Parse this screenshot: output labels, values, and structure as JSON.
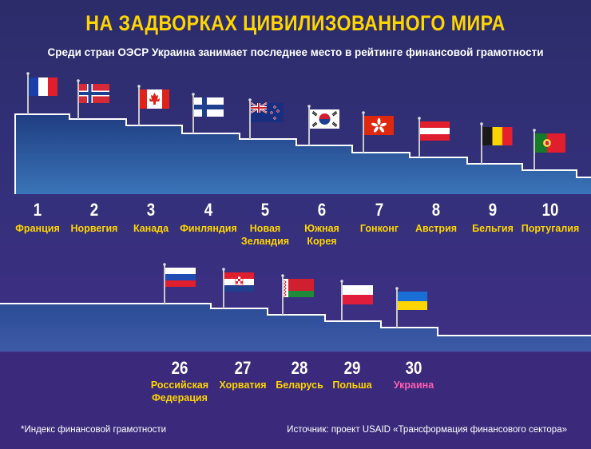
{
  "title": "НА ЗАДВОРКАХ ЦИВИЛИЗОВАННОГО МИРА",
  "subtitle": "Среди стран ОЭСР Украина занимает последнее место в рейтинге финансовой грамотности",
  "footnote": "*Индекс финансовой грамотности",
  "source": "Источник: проект USAID «Трансформация финансового сектора»",
  "colors": {
    "title": "#ffd500",
    "country_label": "#ffd500",
    "highlight_label": "#ff5db0",
    "stairs_edge": "#ffffff"
  },
  "chart_data": {
    "type": "table",
    "title": "НА ЗАДВОРКАХ ЦИВИЛИЗОВАННОГО МИРА",
    "rows": [
      {
        "rank": "1",
        "country": "Франция",
        "flag": "flag-france"
      },
      {
        "rank": "2",
        "country": "Норвегия",
        "flag": "flag-norway"
      },
      {
        "rank": "3",
        "country": "Канада",
        "flag": "flag-canada"
      },
      {
        "rank": "4",
        "country": "Финляндия",
        "flag": "flag-finland"
      },
      {
        "rank": "5",
        "country": "Новая Зеландия",
        "flag": "flag-new-zealand"
      },
      {
        "rank": "6",
        "country": "Южная Корея",
        "flag": "flag-south-korea"
      },
      {
        "rank": "7",
        "country": "Гонконг",
        "flag": "flag-hong-kong"
      },
      {
        "rank": "8",
        "country": "Австрия",
        "flag": "flag-austria"
      },
      {
        "rank": "9",
        "country": "Бельгия",
        "flag": "flag-belgium"
      },
      {
        "rank": "10",
        "country": "Португалия",
        "flag": "flag-portugal"
      },
      {
        "rank": "26",
        "country": "Российская Федерация",
        "flag": "flag-russia"
      },
      {
        "rank": "27",
        "country": "Хорватия",
        "flag": "flag-croatia"
      },
      {
        "rank": "28",
        "country": "Беларусь",
        "flag": "flag-belarus"
      },
      {
        "rank": "29",
        "country": "Польша",
        "flag": "flag-poland"
      },
      {
        "rank": "30",
        "country": "Украина",
        "flag": "flag-ukraine",
        "highlight": true
      }
    ]
  }
}
